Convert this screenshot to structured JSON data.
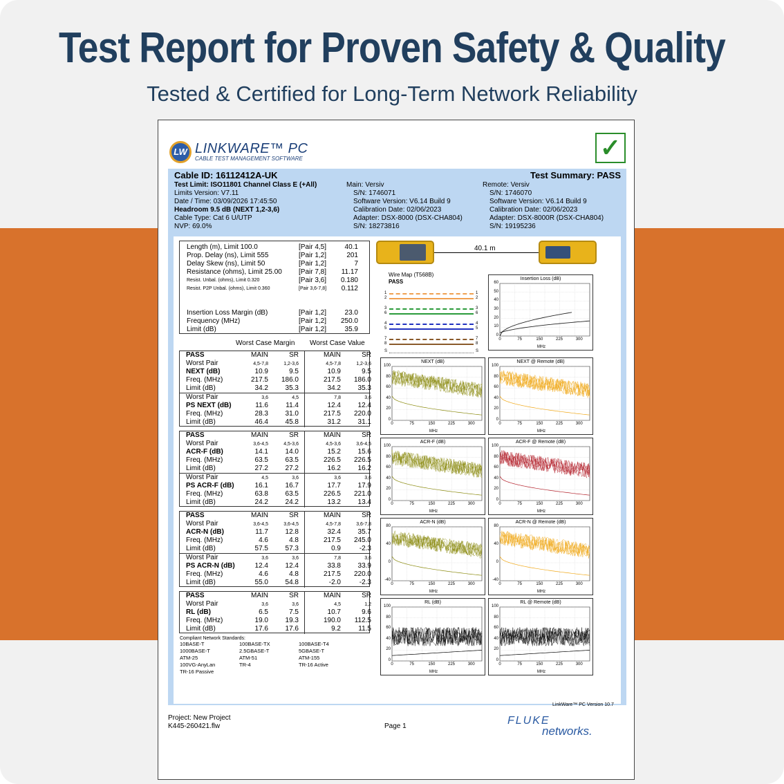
{
  "banner": {
    "title": "Test Report for Proven Safety & Quality",
    "subtitle": "Tested & Certified for Long-Term Network Reliability"
  },
  "logo": {
    "initials": "LW",
    "name": "LINKWARE™ PC",
    "tagline": "CABLE TEST MANAGEMENT SOFTWARE"
  },
  "header": {
    "cable_id": "Cable ID: 16112412A-UK",
    "summary": "Test Summary: PASS",
    "left": [
      "Test Limit: ISO11801 Channel Class E (+All)",
      "Limits Version: V7.11",
      "Date / Time: 03/09/2026  17:45:50",
      "Headroom 9.5 dB (NEXT 1,2-3,6)",
      "Cable Type: Cat 6 U/UTP",
      "NVP: 69.0%"
    ],
    "mid": [
      "Main: Versiv",
      "S/N: 1746071",
      "Software Version: V6.14 Build 9",
      "Calibration Date: 02/06/2023",
      "Adapter: DSX-8000 (DSX-CHA804)",
      "S/N: 18273816"
    ],
    "right": [
      "Remote: Versiv",
      "S/N: 1746070",
      "Software Version: V6.14 Build 9",
      "Calibration Date: 02/06/2023",
      "Adapter: DSX-8000R (DSX-CHA804)",
      "S/N: 19195236"
    ]
  },
  "summary_box": {
    "rows": [
      {
        "label": "Length (m), Limit 100.0",
        "pair": "[Pair 4,5]",
        "value": "40.1"
      },
      {
        "label": "Prop. Delay (ns), Limit 555",
        "pair": "[Pair 1,2]",
        "value": "201"
      },
      {
        "label": "Delay Skew (ns), Limit 50",
        "pair": "[Pair 1,2]",
        "value": "7"
      },
      {
        "label": "Resistance (ohms), Limit 25.00",
        "pair": "[Pair 7,8]",
        "value": "11.17"
      },
      {
        "label": "Resist. Unbal. (ohms), Limit 0.320",
        "pair": "[Pair 3,6]",
        "value": "0.180"
      },
      {
        "label": "Resist. P2P Unbal. (ohms), Limit 0.360",
        "pair": "[Pair 3,6-7,8]",
        "value": "0.112"
      }
    ],
    "il_rows": [
      {
        "label": "Insertion Loss Margin (dB)",
        "pair": "[Pair 1,2]",
        "value": "23.0"
      },
      {
        "label": "Frequency (MHz)",
        "pair": "[Pair 1,2]",
        "value": "250.0"
      },
      {
        "label": "Limit (dB)",
        "pair": "[Pair 1,2]",
        "value": "35.9"
      }
    ]
  },
  "col_heads": {
    "margin": "Worst Case Margin",
    "value": "Worst Case Value"
  },
  "sections": [
    {
      "pass": "PASS",
      "cols": [
        "MAIN",
        "SR",
        "MAIN",
        "SR"
      ],
      "groups": [
        {
          "pairs": [
            "4,5-7,8",
            "1,2-3,6",
            "4,5-7,8",
            "1,2-3,6"
          ],
          "name": "NEXT (dB)",
          "val": [
            "10.9",
            "9.5",
            "10.9",
            "9.5"
          ],
          "freq": [
            "217.5",
            "186.0",
            "217.5",
            "186.0"
          ],
          "limit": [
            "34.2",
            "35.3",
            "34.2",
            "35.3"
          ]
        },
        {
          "pairs": [
            "3,6",
            "4,5",
            "7,8",
            "3,6"
          ],
          "name": "PS NEXT (dB)",
          "val": [
            "11.6",
            "11.4",
            "12.4",
            "12.4"
          ],
          "freq": [
            "28.3",
            "31.0",
            "217.5",
            "220.0"
          ],
          "limit": [
            "46.4",
            "45.8",
            "31.2",
            "31.1"
          ]
        }
      ]
    },
    {
      "pass": "PASS",
      "cols": [
        "MAIN",
        "SR",
        "MAIN",
        "SR"
      ],
      "groups": [
        {
          "pairs": [
            "3,6-4,5",
            "4,5-3,6",
            "4,5-3,6",
            "3,6-4,5"
          ],
          "name": "ACR-F (dB)",
          "val": [
            "14.1",
            "14.0",
            "15.2",
            "15.6"
          ],
          "freq": [
            "63.5",
            "63.5",
            "226.5",
            "226.5"
          ],
          "limit": [
            "27.2",
            "27.2",
            "16.2",
            "16.2"
          ]
        },
        {
          "pairs": [
            "4,5",
            "3,6",
            "3,6",
            "3,6"
          ],
          "name": "PS ACR-F (dB)",
          "val": [
            "16.1",
            "16.7",
            "17.7",
            "17.9"
          ],
          "freq": [
            "63.8",
            "63.5",
            "226.5",
            "221.0"
          ],
          "limit": [
            "24.2",
            "24.2",
            "13.2",
            "13.4"
          ]
        }
      ]
    },
    {
      "pass": "PASS",
      "cols": [
        "MAIN",
        "SR",
        "MAIN",
        "SR"
      ],
      "groups": [
        {
          "pairs": [
            "3,6-4,5",
            "3,6-4,5",
            "4,5-7,8",
            "3,6-7,8"
          ],
          "name": "ACR-N (dB)",
          "val": [
            "11.7",
            "12.8",
            "32.4",
            "35.7"
          ],
          "freq": [
            "4.6",
            "4.8",
            "217.5",
            "245.0"
          ],
          "limit": [
            "57.5",
            "57.3",
            "0.9",
            "-2.3"
          ]
        },
        {
          "pairs": [
            "3,6",
            "3,6",
            "7,8",
            "3,6"
          ],
          "name": "PS ACR-N (dB)",
          "val": [
            "12.4",
            "12.4",
            "33.8",
            "33.9"
          ],
          "freq": [
            "4.6",
            "4.8",
            "217.5",
            "220.0"
          ],
          "limit": [
            "55.0",
            "54.8",
            "-2.0",
            "-2.3"
          ]
        }
      ]
    },
    {
      "pass": "PASS",
      "cols": [
        "MAIN",
        "SR",
        "MAIN",
        "SR"
      ],
      "groups": [
        {
          "pairs": [
            "3,6",
            "3,6",
            "4,5",
            "1,2"
          ],
          "name": "RL (dB)",
          "val": [
            "6.5",
            "7.5",
            "10.7",
            "9.6"
          ],
          "freq": [
            "19.0",
            "19.3",
            "190.0",
            "112.5"
          ],
          "limit": [
            "17.6",
            "17.6",
            "9.2",
            "11.5"
          ]
        }
      ]
    }
  ],
  "row_labels": {
    "worst": "Worst Pair",
    "freq": "Freq. (MHz)",
    "limit": "Limit (dB)"
  },
  "standards": {
    "title": "Compliant Network Standards:",
    "items": [
      "10BASE-T",
      "100BASE-TX",
      "100BASE-T4",
      "1000BASE-T",
      "2.5GBASE-T",
      "5GBASE-T",
      "ATM-25",
      "ATM-51",
      "ATM-155",
      "100VG-AnyLan",
      "TR-4",
      "TR-16 Active",
      "TR-16 Passive"
    ]
  },
  "link": {
    "length": "40.1 m"
  },
  "wiremap": {
    "title": "Wire Map (T568B)",
    "result": "PASS",
    "pins": [
      "1",
      "2",
      "3",
      "6",
      "4",
      "5",
      "7",
      "8"
    ],
    "shield": "S"
  },
  "charts": [
    {
      "title": "Insertion Loss (dB)",
      "yticks": [
        "60",
        "50",
        "40",
        "30",
        "20",
        "10",
        "0"
      ],
      "xticks": [
        "0",
        "75",
        "150",
        "225",
        "300"
      ],
      "xlabel": "MHz",
      "color": "#000000"
    },
    {
      "title": "NEXT (dB)",
      "yticks": [
        "100",
        "80",
        "60",
        "40",
        "20",
        "0"
      ],
      "xticks": [
        "0",
        "75",
        "150",
        "225",
        "300"
      ],
      "xlabel": "MHz",
      "color": "#8a8a0e"
    },
    {
      "title": "NEXT @ Remote (dB)",
      "yticks": [
        "100",
        "80",
        "60",
        "40",
        "20",
        "0"
      ],
      "xticks": [
        "0",
        "75",
        "150",
        "225",
        "300"
      ],
      "xlabel": "MHz",
      "color": "#f0a818"
    },
    {
      "title": "ACR-F (dB)",
      "yticks": [
        "100",
        "80",
        "60",
        "40",
        "20",
        "0"
      ],
      "xticks": [
        "0",
        "75",
        "150",
        "225",
        "300"
      ],
      "xlabel": "MHz",
      "color": "#8a8a0e"
    },
    {
      "title": "ACR-F @ Remote (dB)",
      "yticks": [
        "100",
        "80",
        "60",
        "40",
        "20",
        "0"
      ],
      "xticks": [
        "0",
        "75",
        "150",
        "225",
        "300"
      ],
      "xlabel": "MHz",
      "color": "#b3202a"
    },
    {
      "title": "ACR-N (dB)",
      "yticks": [
        "80",
        "40",
        "0",
        "-40"
      ],
      "xticks": [
        "0",
        "75",
        "150",
        "225",
        "300"
      ],
      "xlabel": "MHz",
      "color": "#8a8a0e"
    },
    {
      "title": "ACR-N @ Remote (dB)",
      "yticks": [
        "80",
        "40",
        "0",
        "-40"
      ],
      "xticks": [
        "0",
        "75",
        "150",
        "225",
        "300"
      ],
      "xlabel": "MHz",
      "color": "#f0a818"
    },
    {
      "title": "RL (dB)",
      "yticks": [
        "100",
        "80",
        "60",
        "40",
        "20",
        "0"
      ],
      "xticks": [
        "0",
        "75",
        "150",
        "225",
        "300"
      ],
      "xlabel": "MHz",
      "color": "#000000"
    },
    {
      "title": "RL @ Remote (dB)",
      "yticks": [
        "100",
        "80",
        "60",
        "40",
        "20",
        "0"
      ],
      "xticks": [
        "0",
        "75",
        "150",
        "225",
        "300"
      ],
      "xlabel": "MHz",
      "color": "#000000"
    }
  ],
  "version": "LinkWare™ PC Version 10.7",
  "footer": {
    "project": "Project: New Project",
    "file": "K445-260421.flw",
    "page": "Page 1",
    "brand1": "FLUKE",
    "brand2": "networks."
  }
}
